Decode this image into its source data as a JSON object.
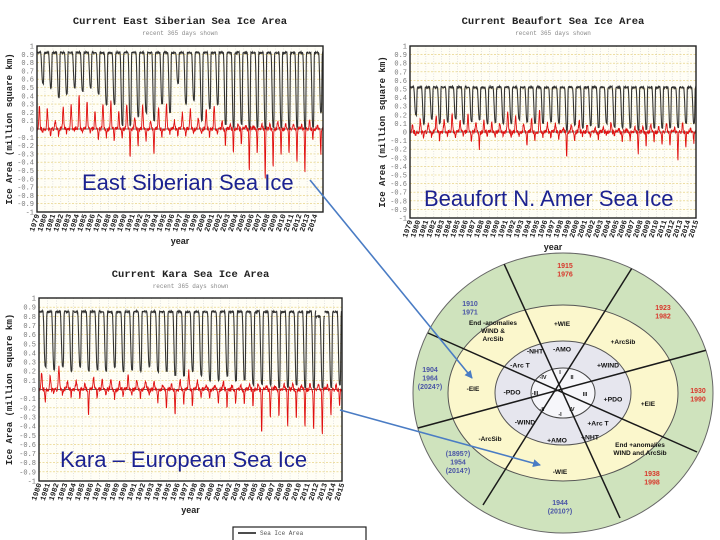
{
  "chart_data": [
    {
      "type": "line",
      "title": "Current East Siberian Sea Ice Area",
      "subtitle": "recent 365 days shown",
      "ylabel": "Ice Area (million square km)",
      "xlabel": "year",
      "ylim": [
        -1,
        1
      ],
      "ytick_step": 0.1,
      "grid": true,
      "overlay_label": "East Siberian Sea Ice",
      "xticks": [
        "1979",
        "1980",
        "1981",
        "1982",
        "1983",
        "1984",
        "1985",
        "1986",
        "1987",
        "1988",
        "1989",
        "1990",
        "1991",
        "1992",
        "1993",
        "1994",
        "1995",
        "1996",
        "1997",
        "1998",
        "1999",
        "2000",
        "2001",
        "2002",
        "2003",
        "2004",
        "2005",
        "2006",
        "2007",
        "2008",
        "2009",
        "2010",
        "2011",
        "2012",
        "2013",
        "2014"
      ],
      "series": [
        {
          "name": "Sea Ice Area",
          "color": "#111111",
          "annual_max": [
            0.92,
            0.92,
            0.92,
            0.92,
            0.92,
            0.92,
            0.92,
            0.92,
            0.92,
            0.92,
            0.92,
            0.92,
            0.92,
            0.92,
            0.92,
            0.92,
            0.92,
            0.92,
            0.92,
            0.92,
            0.92,
            0.92,
            0.92,
            0.92,
            0.92,
            0.92,
            0.92,
            0.92,
            0.92,
            0.92,
            0.92,
            0.92,
            0.92,
            0.92,
            0.92,
            0.92
          ],
          "annual_min": [
            0.55,
            0.5,
            0.38,
            0.42,
            0.5,
            0.45,
            0.5,
            0.42,
            0.3,
            0.3,
            0.05,
            0.05,
            0.15,
            0.2,
            0.1,
            0.3,
            0.2,
            0.55,
            0.3,
            0.35,
            0.1,
            0.25,
            0.3,
            0.05,
            0.02,
            0.05,
            0.0,
            0.02,
            0.0,
            0.02,
            0.02,
            0.0,
            0.02,
            0.0,
            0.02,
            0.2
          ]
        },
        {
          "name": "anomaly",
          "color": "#e01010",
          "annual_max": [
            0.3,
            0.25,
            0.1,
            0.28,
            0.3,
            0.4,
            0.35,
            0.2,
            0.3,
            0.35,
            0.2,
            0.3,
            0.15,
            0.3,
            0.1,
            0.25,
            0.3,
            0.1,
            0.2,
            0.25,
            0.15,
            0.25,
            0.3,
            0.1,
            0.05,
            0.05,
            0.05,
            0.05,
            0.05,
            0.05,
            0.1,
            0.05,
            0.05,
            0.05,
            0.1,
            0.05
          ],
          "annual_min": [
            -0.05,
            -0.1,
            -0.08,
            -0.05,
            -0.02,
            -0.05,
            -0.05,
            -0.12,
            -0.1,
            -0.15,
            -0.1,
            -0.35,
            -0.2,
            -0.15,
            -0.3,
            -0.1,
            -0.05,
            -0.1,
            -0.1,
            -0.05,
            -0.05,
            -0.1,
            -0.05,
            -0.2,
            -0.3,
            -0.2,
            -0.5,
            -0.3,
            -0.6,
            -0.45,
            -0.3,
            -0.3,
            -0.4,
            -0.55,
            -0.15,
            -0.3
          ]
        }
      ]
    },
    {
      "type": "line",
      "title": "Current Beaufort Sea Ice Area",
      "subtitle": "recent 365 days shown",
      "ylabel": "Ice Area (million square km)",
      "xlabel": "year",
      "ylim": [
        -1,
        1
      ],
      "ytick_step": 0.1,
      "grid": true,
      "overlay_label": "Beaufort N. Amer Sea Ice",
      "xticks": [
        "1979",
        "1980",
        "1981",
        "1982",
        "1983",
        "1984",
        "1985",
        "1986",
        "1987",
        "1988",
        "1989",
        "1990",
        "1991",
        "1992",
        "1993",
        "1994",
        "1995",
        "1996",
        "1997",
        "1998",
        "1999",
        "2000",
        "2001",
        "2002",
        "2003",
        "2004",
        "2005",
        "2006",
        "2007",
        "2008",
        "2009",
        "2010",
        "2011",
        "2012",
        "2013",
        "2014",
        "2015"
      ],
      "series": [
        {
          "name": "Sea Ice Area",
          "color": "#111111",
          "annual_max": [
            0.52,
            0.52,
            0.52,
            0.52,
            0.52,
            0.52,
            0.52,
            0.52,
            0.52,
            0.52,
            0.52,
            0.52,
            0.52,
            0.52,
            0.52,
            0.52,
            0.52,
            0.52,
            0.52,
            0.52,
            0.52,
            0.52,
            0.52,
            0.52,
            0.52,
            0.52,
            0.52,
            0.52,
            0.52,
            0.52,
            0.52,
            0.52,
            0.52,
            0.52,
            0.52,
            0.52
          ],
          "annual_min": [
            0.2,
            0.1,
            0.15,
            0.1,
            0.12,
            0.15,
            0.1,
            0.12,
            0.15,
            0.1,
            0.12,
            0.1,
            0.1,
            0.15,
            0.12,
            0.1,
            0.1,
            0.12,
            0.1,
            0.02,
            0.08,
            0.05,
            0.08,
            0.05,
            0.1,
            0.05,
            0.05,
            0.05,
            0.02,
            0.03,
            0.05,
            0.05,
            0.05,
            0.05,
            0.1,
            0.1
          ]
        },
        {
          "name": "anomaly",
          "color": "#e01010",
          "annual_max": [
            0.1,
            0.15,
            0.1,
            0.2,
            0.15,
            0.2,
            0.15,
            0.2,
            0.1,
            0.15,
            0.1,
            0.1,
            0.25,
            0.2,
            0.1,
            0.15,
            0.25,
            0.1,
            0.1,
            0.05,
            0.1,
            0.15,
            0.1,
            0.05,
            0.05,
            0.1,
            0.05,
            0.05,
            0.05,
            0.05,
            0.1,
            0.05,
            0.1,
            0.05,
            0.1,
            0.05
          ],
          "annual_min": [
            -0.05,
            -0.08,
            -0.05,
            -0.1,
            -0.05,
            -0.08,
            -0.05,
            -0.1,
            -0.2,
            -0.05,
            -0.05,
            -0.05,
            -0.05,
            -0.05,
            -0.15,
            -0.1,
            -0.05,
            -0.08,
            -0.1,
            -0.3,
            -0.1,
            -0.05,
            -0.05,
            -0.08,
            -0.05,
            -0.05,
            -0.1,
            -0.1,
            -0.25,
            -0.15,
            -0.1,
            -0.15,
            -0.15,
            -0.35,
            -0.2,
            -0.12
          ]
        }
      ]
    },
    {
      "type": "line",
      "title": "Current Kara Sea Ice Area",
      "subtitle": "recent 365 days shown",
      "ylabel": "Ice Area (million square km)",
      "xlabel": "year",
      "ylim": [
        -1,
        1
      ],
      "ytick_step": 0.1,
      "grid": true,
      "overlay_label": "Kara – European Sea Ice",
      "xticks": [
        "1980",
        "1981",
        "1982",
        "1983",
        "1984",
        "1985",
        "1986",
        "1987",
        "1988",
        "1989",
        "1990",
        "1991",
        "1992",
        "1993",
        "1994",
        "1995",
        "1996",
        "1997",
        "1998",
        "1999",
        "2000",
        "2001",
        "2002",
        "2003",
        "2004",
        "2005",
        "2006",
        "2007",
        "2008",
        "2009",
        "2010",
        "2011",
        "2012",
        "2013",
        "2014",
        "2015"
      ],
      "series": [
        {
          "name": "Sea Ice Area",
          "color": "#111111",
          "annual_max": [
            0.85,
            0.85,
            0.85,
            0.85,
            0.85,
            0.85,
            0.85,
            0.85,
            0.85,
            0.85,
            0.85,
            0.85,
            0.85,
            0.85,
            0.85,
            0.85,
            0.85,
            0.85,
            0.85,
            0.85,
            0.85,
            0.85,
            0.85,
            0.85,
            0.85,
            0.85,
            0.85,
            0.85,
            0.85,
            0.85,
            0.85,
            0.85,
            0.8,
            0.85,
            0.85
          ],
          "annual_min": [
            0.25,
            0.22,
            0.25,
            0.2,
            0.25,
            0.2,
            0.22,
            0.2,
            0.25,
            0.2,
            0.22,
            0.2,
            0.25,
            0.2,
            0.2,
            0.15,
            0.15,
            0.2,
            0.15,
            0.1,
            0.1,
            0.15,
            0.1,
            0.1,
            0.05,
            0.05,
            0.05,
            0.02,
            0.02,
            0.05,
            0.02,
            0.02,
            0.02,
            0.02,
            0.05
          ]
        },
        {
          "name": "anomaly",
          "color": "#e01010",
          "annual_max": [
            0.2,
            0.15,
            0.25,
            0.1,
            0.1,
            0.05,
            0.15,
            0.1,
            0.1,
            0.1,
            0.15,
            0.1,
            0.1,
            0.1,
            0.05,
            0.05,
            0.1,
            0.2,
            0.1,
            0.05,
            0.05,
            0.1,
            0.05,
            0.05,
            0.05,
            0.05,
            0.05,
            0.05,
            0.05,
            0.05,
            0.05,
            0.05,
            0.05,
            0.05,
            0.05
          ],
          "annual_min": [
            -0.15,
            -0.05,
            -0.05,
            -0.08,
            -0.1,
            -0.3,
            -0.1,
            -0.05,
            -0.1,
            -0.08,
            -0.05,
            -0.1,
            -0.05,
            -0.15,
            -0.2,
            -0.28,
            -0.15,
            -0.2,
            -0.1,
            -0.1,
            -0.15,
            -0.2,
            -0.15,
            -0.15,
            -0.2,
            -0.5,
            -0.3,
            -0.3,
            -0.4,
            -0.3,
            -0.4,
            -0.45,
            -0.5,
            -0.3,
            -0.2
          ]
        }
      ]
    }
  ],
  "legend": {
    "label": "Sea Ice Area"
  },
  "diagram": {
    "colors": {
      "outer": "#cfe3bd",
      "middle": "#fbf7cc",
      "inner": "#e6e6ee",
      "core": "#f6f6fa",
      "red_text": "#d8382c",
      "blue_text": "#4a55a6",
      "arrow": "#4a7cc4"
    },
    "outer": [
      {
        "lines": [
          "1915",
          "1976"
        ],
        "tone": "red"
      },
      {
        "lines": [
          "1923",
          "1982"
        ],
        "tone": "red"
      },
      {
        "lines": [
          "1930",
          "1990"
        ],
        "tone": "red"
      },
      {
        "lines": [
          "1938",
          "1998"
        ],
        "tone": "red"
      },
      {
        "lines": [
          "1944",
          "(2010?)"
        ],
        "tone": "blue"
      },
      {
        "lines": [
          "(1895?)",
          "1954",
          "(2014?)"
        ],
        "tone": "blue"
      },
      {
        "lines": [
          "1904",
          "1964",
          "(2024?)"
        ],
        "tone": "blue"
      },
      {
        "lines": [
          "1910",
          "1971"
        ],
        "tone": "blue"
      }
    ],
    "middle": [
      {
        "lines": [
          "+WIE"
        ]
      },
      {
        "lines": [
          "+ArcSib"
        ]
      },
      {
        "lines": [
          "+EIE"
        ]
      },
      {
        "lines": [
          "End +anomalies",
          "WIND and ArcSib"
        ]
      },
      {
        "lines": [
          "-WIE"
        ]
      },
      {
        "lines": [
          "-ArcSib"
        ]
      },
      {
        "lines": [
          "-EIE"
        ]
      },
      {
        "lines": [
          "End -anomalies",
          "WIND &",
          "ArcSib"
        ]
      }
    ],
    "inner": [
      {
        "lines": [
          "-AMO"
        ]
      },
      {
        "lines": [
          "+WIND"
        ]
      },
      {
        "lines": [
          "+PDO"
        ]
      },
      {
        "lines": [
          "+Arc T"
        ]
      },
      {
        "lines": [
          "+NHT"
        ]
      },
      {
        "lines": [
          "+AMO"
        ]
      },
      {
        "lines": [
          "-WIND"
        ]
      },
      {
        "lines": [
          "-PDO"
        ]
      },
      {
        "lines": [
          "-Arc T"
        ]
      },
      {
        "lines": [
          "-NHT"
        ]
      }
    ],
    "core": [
      {
        "lines": [
          "I"
        ]
      },
      {
        "lines": [
          "II"
        ]
      },
      {
        "lines": [
          "III"
        ]
      },
      {
        "lines": [
          "IV"
        ]
      },
      {
        "lines": [
          "-I"
        ]
      },
      {
        "lines": [
          "-II"
        ]
      },
      {
        "lines": [
          "-III"
        ]
      },
      {
        "lines": [
          "-IV"
        ]
      }
    ]
  }
}
